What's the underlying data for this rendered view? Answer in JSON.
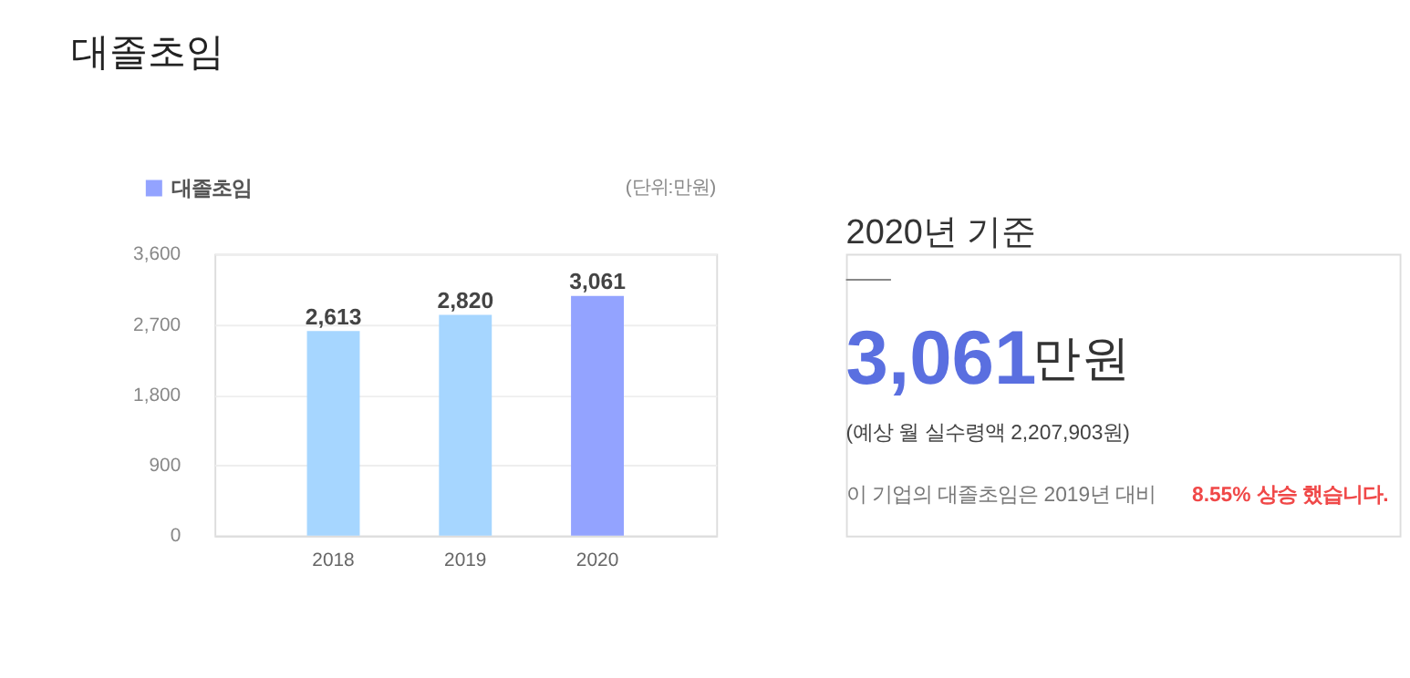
{
  "chart_data": [
    {
      "type": "bar",
      "title": "대졸초임",
      "categories": [
        "2018",
        "2019",
        "2020"
      ],
      "series": [
        {
          "name": "대졸초임",
          "color": "#93a3ff",
          "colors": [
            "#a6d6ff",
            "#a6d6ff",
            "#93a3ff"
          ],
          "values": [
            2613,
            2820,
            3061
          ],
          "value_labels": [
            "2,613",
            "2,820",
            "3,061"
          ]
        }
      ],
      "ylim": [
        0,
        3600
      ],
      "yticks": [
        0,
        900,
        {
          "value": 1800,
          "label": "1,800"
        },
        {
          "value": 2700,
          "label": "2,700"
        },
        {
          "value": 3600,
          "label": "3,600"
        }
      ],
      "grid": "y",
      "legend": "top left",
      "annotations": [
        "(단위:만원)"
      ]
    },
    {
      "type": "other",
      "annotations": [
        "2020년 기준",
        "3,061",
        "만원",
        "(예상 월 실수령액 2,207,903원)",
        "이 기업의 대졸초임은 2019년 대비",
        "8.55% 상승 했습니다."
      ]
    }
  ]
}
